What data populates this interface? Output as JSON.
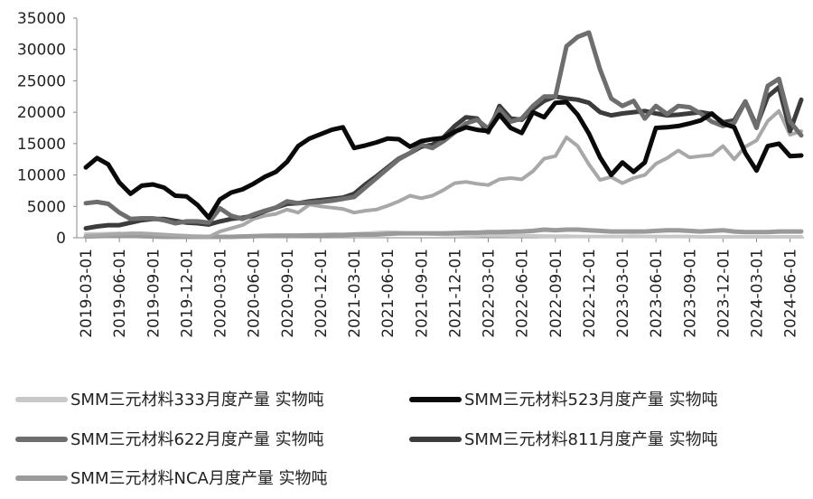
{
  "chart_data": {
    "type": "line",
    "title": "",
    "xlabel": "",
    "ylabel": "",
    "ylim": [
      0,
      35000
    ],
    "y_ticks": [
      "0",
      "5000",
      "10000",
      "15000",
      "20000",
      "25000",
      "30000",
      "35000"
    ],
    "x_tick_labels": [
      "2019-03-01",
      "2019-06-01",
      "2019-09-01",
      "2019-12-01",
      "2020-03-01",
      "2020-06-01",
      "2020-09-01",
      "2020-12-01",
      "2021-03-01",
      "2021-06-01",
      "2021-09-01",
      "2021-12-01",
      "2022-03-01",
      "2022-06-01",
      "2022-09-01",
      "2022-12-01",
      "2023-03-01",
      "2023-06-01",
      "2023-09-01",
      "2023-12-01",
      "2024-03-01",
      "2024-06-01"
    ],
    "x": [
      "2019-03",
      "2019-04",
      "2019-05",
      "2019-06",
      "2019-07",
      "2019-08",
      "2019-09",
      "2019-10",
      "2019-11",
      "2019-12",
      "2020-01",
      "2020-02",
      "2020-03",
      "2020-04",
      "2020-05",
      "2020-06",
      "2020-07",
      "2020-08",
      "2020-09",
      "2020-10",
      "2020-11",
      "2020-12",
      "2021-01",
      "2021-02",
      "2021-03",
      "2021-04",
      "2021-05",
      "2021-06",
      "2021-07",
      "2021-08",
      "2021-09",
      "2021-10",
      "2021-11",
      "2021-12",
      "2022-01",
      "2022-02",
      "2022-03",
      "2022-04",
      "2022-05",
      "2022-06",
      "2022-07",
      "2022-08",
      "2022-09",
      "2022-10",
      "2022-11",
      "2022-12",
      "2023-01",
      "2023-02",
      "2023-03",
      "2023-04",
      "2023-05",
      "2023-06",
      "2023-07",
      "2023-08",
      "2023-09",
      "2023-10",
      "2023-11",
      "2023-12",
      "2024-01",
      "2024-02",
      "2024-03",
      "2024-04",
      "2024-05",
      "2024-06",
      "2024-07"
    ],
    "grid": false,
    "legend_position": "bottom",
    "series": [
      {
        "name": "SMM三元材料333月度产量 实物吨",
        "color": "#c8c8c8",
        "width": 4,
        "values": [
          600,
          600,
          650,
          700,
          500,
          500,
          450,
          400,
          350,
          300,
          250,
          200,
          150,
          200,
          250,
          300,
          300,
          350,
          350,
          400,
          400,
          450,
          450,
          500,
          600,
          700,
          800,
          900,
          800,
          700,
          700,
          600,
          500,
          500,
          450,
          400,
          350,
          350,
          300,
          300,
          300,
          250,
          250,
          250,
          200,
          200,
          200,
          200,
          200,
          250,
          200,
          200,
          200,
          200,
          200,
          150,
          150,
          150,
          150,
          150,
          150,
          150,
          150,
          150,
          150
        ]
      },
      {
        "name": "SMM三元材料523月度产量 实物吨",
        "color": "#0a0a0a",
        "width": 5,
        "values": [
          11200,
          12700,
          11700,
          8800,
          7000,
          8300,
          8500,
          8000,
          6700,
          6600,
          5200,
          3200,
          6100,
          7200,
          7700,
          8600,
          9700,
          10500,
          12100,
          14600,
          15800,
          16500,
          17200,
          17600,
          14300,
          14700,
          15200,
          15800,
          15700,
          14500,
          15400,
          15700,
          15900,
          16900,
          17600,
          17200,
          17000,
          19600,
          17500,
          16700,
          20000,
          19200,
          21500,
          21600,
          19600,
          16600,
          12800,
          10000,
          12000,
          10500,
          12000,
          17500,
          17600,
          17800,
          18200,
          18700,
          19800,
          18200,
          17600,
          13500,
          10700,
          14600,
          15000,
          13000,
          13100
        ]
      },
      {
        "name": "SMM三元材料622月度产量 实物吨",
        "color": "#6e6e6e",
        "width": 5,
        "values": [
          5500,
          5700,
          5400,
          4000,
          3000,
          3100,
          3100,
          2800,
          2300,
          2600,
          2600,
          2400,
          4700,
          3500,
          3000,
          3700,
          4300,
          4800,
          5800,
          5500,
          5600,
          5700,
          5900,
          6200,
          6500,
          8000,
          9500,
          11000,
          12500,
          13500,
          14800,
          14300,
          15400,
          16800,
          18200,
          18800,
          17400,
          20500,
          18500,
          19000,
          21000,
          22500,
          22500,
          30500,
          32000,
          32700,
          26800,
          22200,
          21000,
          21800,
          19000,
          21000,
          19700,
          21000,
          20800,
          19800,
          18500,
          17800,
          18300,
          21700,
          17500,
          24200,
          25300,
          18500,
          16300
        ]
      },
      {
        "name": "SMM三元材料811月度产量 实物吨",
        "color": "#3c3c3c",
        "width": 5,
        "values": [
          1500,
          1800,
          2000,
          2000,
          2400,
          2800,
          3000,
          3000,
          2700,
          2400,
          2300,
          2100,
          2600,
          3000,
          3200,
          3500,
          4200,
          4800,
          5400,
          5500,
          5800,
          6000,
          6200,
          6400,
          7000,
          8500,
          9800,
          11200,
          12600,
          13500,
          14500,
          14800,
          16000,
          17800,
          19200,
          19000,
          16800,
          21000,
          19000,
          18800,
          20500,
          21800,
          22500,
          22200,
          22000,
          21500,
          20000,
          19500,
          19800,
          20000,
          20200,
          19800,
          19500,
          19600,
          19800,
          20000,
          19700,
          18400,
          18700,
          21700,
          17800,
          22500,
          24000,
          17000,
          22000
        ]
      },
      {
        "name": "SMM三元材料NCA月度产量 实物吨",
        "color": "#9a9a9a",
        "width": 5,
        "values": [
          200,
          250,
          300,
          350,
          300,
          250,
          200,
          150,
          150,
          150,
          150,
          150,
          150,
          150,
          200,
          250,
          300,
          350,
          350,
          350,
          400,
          400,
          450,
          450,
          500,
          500,
          500,
          600,
          700,
          700,
          700,
          700,
          700,
          750,
          800,
          800,
          900,
          900,
          950,
          1000,
          1100,
          1300,
          1200,
          1300,
          1300,
          1200,
          1100,
          1000,
          1000,
          1000,
          1000,
          1100,
          1200,
          1200,
          1100,
          1000,
          1100,
          1200,
          1000,
          900,
          900,
          900,
          1000,
          1000,
          1000
        ]
      },
      {
        "name": "",
        "color": "#a8a8a8",
        "width": 4,
        "values": [
          300,
          400,
          500,
          600,
          700,
          700,
          600,
          500,
          400,
          300,
          200,
          150,
          1000,
          1500,
          2000,
          3000,
          3500,
          3800,
          4500,
          4000,
          5300,
          5000,
          4800,
          4600,
          4000,
          4300,
          4500,
          5100,
          5800,
          6700,
          6300,
          6700,
          7600,
          8700,
          8900,
          8600,
          8400,
          9300,
          9500,
          9300,
          10600,
          12600,
          13000,
          16000,
          14600,
          11700,
          9200,
          9700,
          8700,
          9500,
          10000,
          11800,
          12700,
          13900,
          12800,
          13000,
          13200,
          14600,
          12500,
          14500,
          15500,
          18600,
          20200,
          16400,
          17000
        ]
      }
    ]
  }
}
